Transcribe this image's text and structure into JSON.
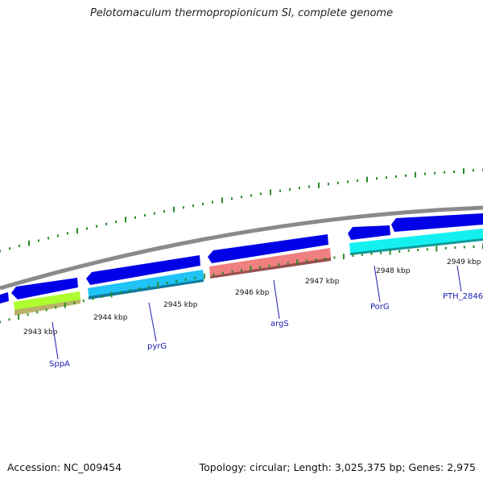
{
  "title": "Pelotomaculum thermopropionicum SI, complete genome",
  "accession": "Accession: NC_009454",
  "summary": "Topology: circular; Length: 3,025,375 bp; Genes: 2,975",
  "ruler_labels": [
    "2943 kbp",
    "2944 kbp",
    "2945 kbp",
    "2946 kbp",
    "2947 kbp",
    "2948 kbp",
    "2949 kbp"
  ],
  "gene_labels": [
    "SppA",
    "pyrG",
    "argS",
    "PorG",
    "PTH_2846"
  ],
  "colors": {
    "backbone": "#8a8a8a",
    "cds": "#0000e6",
    "sppa": "#adff2f",
    "sppa_shadow": "#b9b36a",
    "pyrg": "#1fc3f5",
    "args": "#f08080",
    "porg": "#14f0f0",
    "tick": "#2a8a2a",
    "label": "#1b1bb0"
  }
}
